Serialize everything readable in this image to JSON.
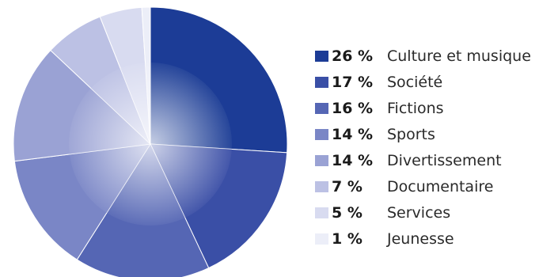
{
  "chart_data": {
    "type": "pie",
    "series": [
      {
        "name": "Culture et musique",
        "value": 26,
        "label": "26 %",
        "color": "#1c3c96"
      },
      {
        "name": "Société",
        "value": 17,
        "label": "17 %",
        "color": "#3a4fa6"
      },
      {
        "name": "Fictions",
        "value": 16,
        "label": "16 %",
        "color": "#5566b4"
      },
      {
        "name": "Sports",
        "value": 14,
        "label": "14 %",
        "color": "#7a86c6"
      },
      {
        "name": "Divertissement",
        "value": 14,
        "label": "14 %",
        "color": "#9aa2d4"
      },
      {
        "name": "Documentaire",
        "value": 7,
        "label": "7 %",
        "color": "#bcc1e4"
      },
      {
        "name": "Services",
        "value": 5,
        "label": "5 %",
        "color": "#d8dbf0"
      },
      {
        "name": "Jeunesse",
        "value": 1,
        "label": "1 %",
        "color": "#eceef8"
      }
    ]
  }
}
